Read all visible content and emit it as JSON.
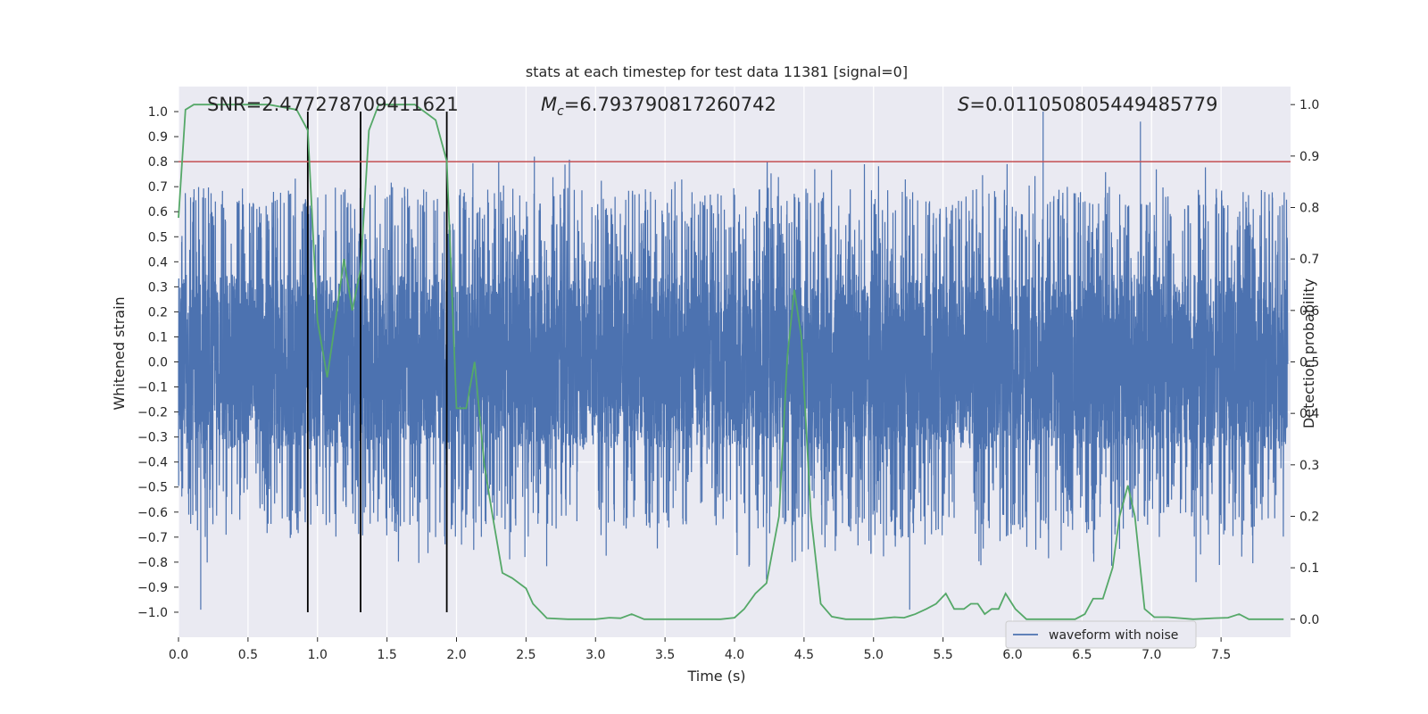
{
  "chart_data": {
    "type": "line",
    "title": "stats at each timestep for test data 11381 [signal=0]",
    "xlabel": "Time (s)",
    "ylabel": "Whitened strain",
    "y2label": "Detection probability",
    "xlim": [
      0,
      8
    ],
    "ylim": [
      -1.1,
      1.1
    ],
    "y2lim": [
      -0.035,
      1.035
    ],
    "xticks": [
      "0.0",
      "0.5",
      "1.0",
      "1.5",
      "2.0",
      "2.5",
      "3.0",
      "3.5",
      "4.0",
      "4.5",
      "5.0",
      "5.5",
      "6.0",
      "6.5",
      "7.0",
      "7.5"
    ],
    "xtick_values": [
      0,
      0.5,
      1,
      1.5,
      2,
      2.5,
      3,
      3.5,
      4,
      4.5,
      5,
      5.5,
      6,
      6.5,
      7,
      7.5
    ],
    "yticks": [
      "1.0",
      "0.9",
      "0.8",
      "0.7",
      "0.6",
      "0.5",
      "0.4",
      "0.3",
      "0.2",
      "0.1",
      "0.0",
      "−0.1",
      "−0.2",
      "−0.3",
      "−0.4",
      "−0.5",
      "−0.6",
      "−0.7",
      "−0.8",
      "−0.9",
      "−1.0"
    ],
    "ytick_values": [
      1.0,
      0.9,
      0.8,
      0.7,
      0.6,
      0.5,
      0.4,
      0.3,
      0.2,
      0.1,
      0.0,
      -0.1,
      -0.2,
      -0.3,
      -0.4,
      -0.5,
      -0.6,
      -0.7,
      -0.8,
      -0.9,
      -1.0
    ],
    "y2ticks": [
      "1.0",
      "0.9",
      "0.8",
      "0.7",
      "0.6",
      "0.5",
      "0.4",
      "0.3",
      "0.2",
      "0.1",
      "0.0"
    ],
    "y2tick_values": [
      1.0,
      0.9,
      0.8,
      0.7,
      0.6,
      0.5,
      0.4,
      0.3,
      0.2,
      0.1,
      0.0
    ],
    "grid": true,
    "legend": {
      "entries": [
        "waveform with noise"
      ],
      "placement": "lower-right"
    },
    "annotations": {
      "snr": "SNR=2.477278709411621",
      "mc_symbol": "M",
      "mc_sub": "c",
      "mc_value": "=6.793790817260742",
      "s_symbol": "S",
      "s_value": "=0.011050805449485779"
    },
    "threshold": {
      "y": 0.8
    },
    "vertical_lines_x": [
      0.93,
      1.31,
      1.93
    ],
    "waveform": {
      "name": "waveform with noise",
      "samples": 8000,
      "typical_range": [
        -0.4,
        0.4
      ],
      "peaks": [
        {
          "x": 0.16,
          "y": -0.99
        },
        {
          "x": 2.56,
          "y": 0.82
        },
        {
          "x": 4.23,
          "y": -0.87
        },
        {
          "x": 5.26,
          "y": -0.99
        },
        {
          "x": 6.22,
          "y": 1.0
        },
        {
          "x": 6.92,
          "y": 0.96
        },
        {
          "x": 7.32,
          "y": -0.88
        }
      ]
    },
    "series": [
      {
        "name": "",
        "axis": "right",
        "x": [
          0.0,
          0.05,
          0.11,
          0.2,
          0.4,
          0.65,
          0.85,
          0.93,
          1.0,
          1.07,
          1.14,
          1.19,
          1.25,
          1.31,
          1.37,
          1.44,
          1.55,
          1.7,
          1.85,
          1.93,
          2.0,
          2.07,
          2.13,
          2.2,
          2.26,
          2.33,
          2.4,
          2.5,
          2.55,
          2.65,
          2.8,
          3.0,
          3.1,
          3.18,
          3.26,
          3.35,
          3.5,
          3.7,
          3.9,
          4.0,
          4.07,
          4.15,
          4.23,
          4.32,
          4.38,
          4.43,
          4.48,
          4.55,
          4.62,
          4.7,
          4.8,
          5.0,
          5.15,
          5.22,
          5.3,
          5.38,
          5.45,
          5.52,
          5.58,
          5.65,
          5.7,
          5.75,
          5.8,
          5.85,
          5.9,
          5.95,
          6.02,
          6.1,
          6.3,
          6.45,
          6.52,
          6.58,
          6.65,
          6.72,
          6.77,
          6.83,
          6.88,
          6.95,
          7.02,
          7.12,
          7.3,
          7.45,
          7.55,
          7.63,
          7.7,
          7.8,
          7.95
        ],
        "values": [
          0.78,
          0.99,
          1.0,
          1.0,
          1.0,
          1.0,
          0.99,
          0.95,
          0.58,
          0.47,
          0.6,
          0.7,
          0.6,
          0.68,
          0.95,
          1.0,
          1.0,
          1.0,
          0.97,
          0.89,
          0.41,
          0.41,
          0.5,
          0.3,
          0.2,
          0.09,
          0.08,
          0.06,
          0.03,
          0.002,
          0.0,
          0.0,
          0.003,
          0.002,
          0.01,
          0.0,
          0.0,
          0.0,
          0.0,
          0.003,
          0.02,
          0.05,
          0.07,
          0.2,
          0.51,
          0.64,
          0.55,
          0.2,
          0.03,
          0.005,
          0.0,
          0.0,
          0.004,
          0.003,
          0.01,
          0.02,
          0.03,
          0.05,
          0.02,
          0.02,
          0.03,
          0.03,
          0.01,
          0.02,
          0.02,
          0.05,
          0.02,
          0.0,
          0.0,
          0.0,
          0.01,
          0.04,
          0.04,
          0.1,
          0.2,
          0.26,
          0.2,
          0.02,
          0.004,
          0.004,
          0.0,
          0.002,
          0.003,
          0.01,
          0.0,
          0.0,
          0.0
        ]
      }
    ]
  }
}
